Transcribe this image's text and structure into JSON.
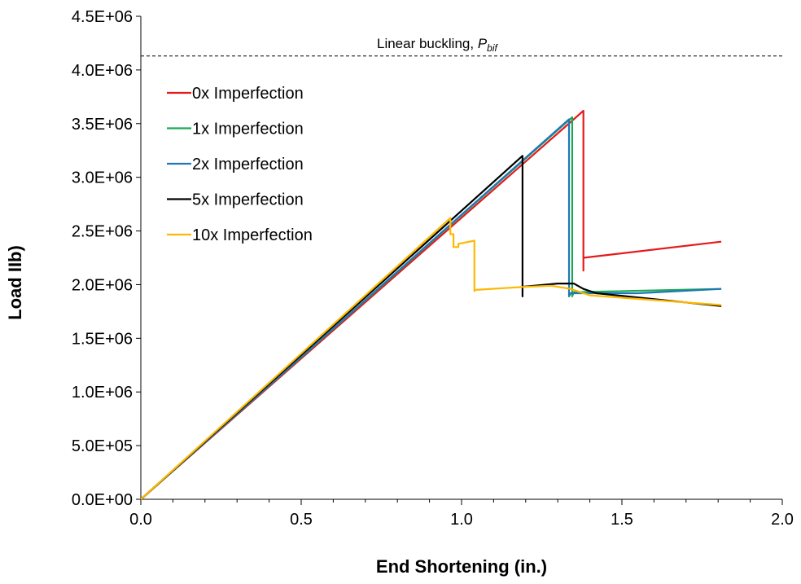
{
  "chart_data": {
    "type": "line",
    "title": "",
    "xlabel": "End Shortening (in.)",
    "ylabel": "Load IIb)",
    "xlim": [
      0,
      2.0
    ],
    "ylim": [
      0,
      4500000
    ],
    "x_ticks": [
      0,
      0.5,
      1.0,
      1.5,
      2.0
    ],
    "x_tick_labels": [
      "0.0",
      "0.5",
      "1.0",
      "1.5",
      "2.0"
    ],
    "x_minor_step": 0.1,
    "y_ticks": [
      0,
      500000,
      1000000,
      1500000,
      2000000,
      2500000,
      3000000,
      3500000,
      4000000,
      4500000
    ],
    "y_tick_labels": [
      "0.0E+00",
      "5.0E+05",
      "1.0E+06",
      "1.5E+06",
      "2.0E+06",
      "2.5E+06",
      "3.0E+06",
      "3.5E+06",
      "4.0E+06",
      "4.5E+06"
    ],
    "grid": false,
    "legend_position": "top-left",
    "reference_line": {
      "y": 4130000,
      "label": "Linear buckling, ",
      "label_symbol": "P",
      "label_subscript": "bif",
      "style": "dashed"
    },
    "series": [
      {
        "name": "0x Imperfection",
        "color": "#e41a1c",
        "points": [
          [
            0,
            0
          ],
          [
            1.38,
            3620000
          ],
          [
            1.38,
            2130000
          ],
          [
            1.38,
            2250000
          ],
          [
            1.81,
            2400000
          ]
        ]
      },
      {
        "name": "1x Imperfection",
        "color": "#1aaa55",
        "points": [
          [
            0,
            0
          ],
          [
            1.345,
            3560000
          ],
          [
            1.345,
            1890000
          ],
          [
            1.35,
            1930000
          ],
          [
            1.81,
            1960000
          ]
        ]
      },
      {
        "name": "2x Imperfection",
        "color": "#1f78b4",
        "points": [
          [
            0,
            0
          ],
          [
            1.335,
            3540000
          ],
          [
            1.335,
            1890000
          ],
          [
            1.34,
            1920000
          ],
          [
            1.55,
            1920000
          ],
          [
            1.81,
            1960000
          ]
        ]
      },
      {
        "name": "5x Imperfection",
        "color": "#000000",
        "points": [
          [
            0,
            0
          ],
          [
            1.19,
            3200000
          ],
          [
            1.19,
            1890000
          ],
          [
            1.19,
            1980000
          ],
          [
            1.3,
            2010000
          ],
          [
            1.35,
            2010000
          ],
          [
            1.38,
            1960000
          ],
          [
            1.42,
            1920000
          ],
          [
            1.81,
            1800000
          ]
        ]
      },
      {
        "name": "10x Imperfection",
        "color": "#ffb800",
        "points": [
          [
            0,
            0
          ],
          [
            0.965,
            2620000
          ],
          [
            0.965,
            2470000
          ],
          [
            0.975,
            2470000
          ],
          [
            0.975,
            2350000
          ],
          [
            0.99,
            2350000
          ],
          [
            0.99,
            2380000
          ],
          [
            1.04,
            2410000
          ],
          [
            1.04,
            1940000
          ],
          [
            1.04,
            1950000
          ],
          [
            1.2,
            1980000
          ],
          [
            1.28,
            1990000
          ],
          [
            1.34,
            1960000
          ],
          [
            1.4,
            1900000
          ],
          [
            1.81,
            1810000
          ]
        ]
      }
    ]
  }
}
